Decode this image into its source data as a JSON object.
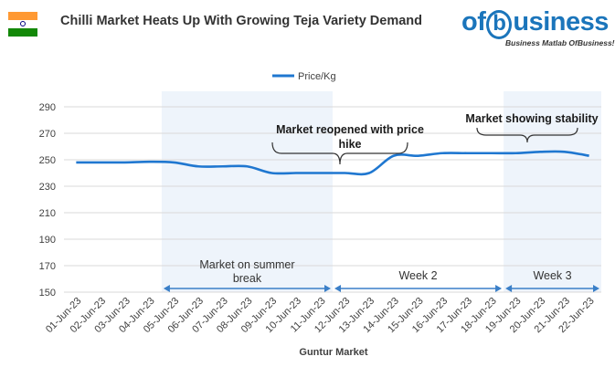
{
  "header": {
    "title": "Chilli Market Heats Up With Growing Teja Variety Demand",
    "logo_pre": "of",
    "logo_b": "b",
    "logo_post": "usiness",
    "logo_tagline": "Business Matlab OfBusiness!",
    "flag_icon": "india-flag-icon"
  },
  "chart_data": {
    "type": "line",
    "title": "",
    "xlabel": "Guntur Market",
    "ylabel": "",
    "legend": {
      "entries": [
        "Price/Kg"
      ],
      "position": "top-center"
    },
    "ylim": [
      150,
      290
    ],
    "yticks": [
      150,
      170,
      190,
      210,
      230,
      250,
      270,
      290
    ],
    "categories": [
      "01-Jun-23",
      "02-Jun-23",
      "03-Jun-23",
      "04-Jun-23",
      "05-Jun-23",
      "06-Jun-23",
      "07-Jun-23",
      "08-Jun-23",
      "09-Jun-23",
      "10-Jun-23",
      "11-Jun-23",
      "12-Jun-23",
      "13-Jun-23",
      "14-Jun-23",
      "15-Jun-23",
      "16-Jun-23",
      "17-Jun-23",
      "18-Jun-23",
      "19-Jun-23",
      "20-Jun-23",
      "21-Jun-23",
      "22-Jun-23"
    ],
    "series": [
      {
        "name": "Price/Kg",
        "color": "#1f77d0",
        "values": [
          248,
          248,
          248,
          248.5,
          248,
          245,
          245,
          245,
          240,
          240,
          240,
          240,
          240,
          253,
          253,
          255,
          255,
          255,
          255,
          256,
          256,
          253
        ]
      }
    ],
    "grid": true,
    "shaded_ranges": [
      {
        "from": "05-Jun-23",
        "to": "11-Jun-23",
        "color": "#eef4fb"
      },
      {
        "from": "19-Jun-23",
        "to": "22-Jun-23",
        "color": "#eef4fb"
      }
    ],
    "annotations": [
      {
        "text_lines": [
          "Market reopened with price",
          "hike"
        ]
      },
      {
        "text_lines": [
          "Market showing stability"
        ]
      }
    ],
    "periods": [
      {
        "label_lines": [
          "Market on summer",
          "break"
        ],
        "from": "05-Jun-23",
        "to": "11-Jun-23"
      },
      {
        "label_lines": [
          "Week 2"
        ],
        "from": "12-Jun-23",
        "to": "18-Jun-23"
      },
      {
        "label_lines": [
          "Week 3"
        ],
        "from": "19-Jun-23",
        "to": "22-Jun-23"
      }
    ],
    "arrow_color": "#3a7fc8"
  }
}
